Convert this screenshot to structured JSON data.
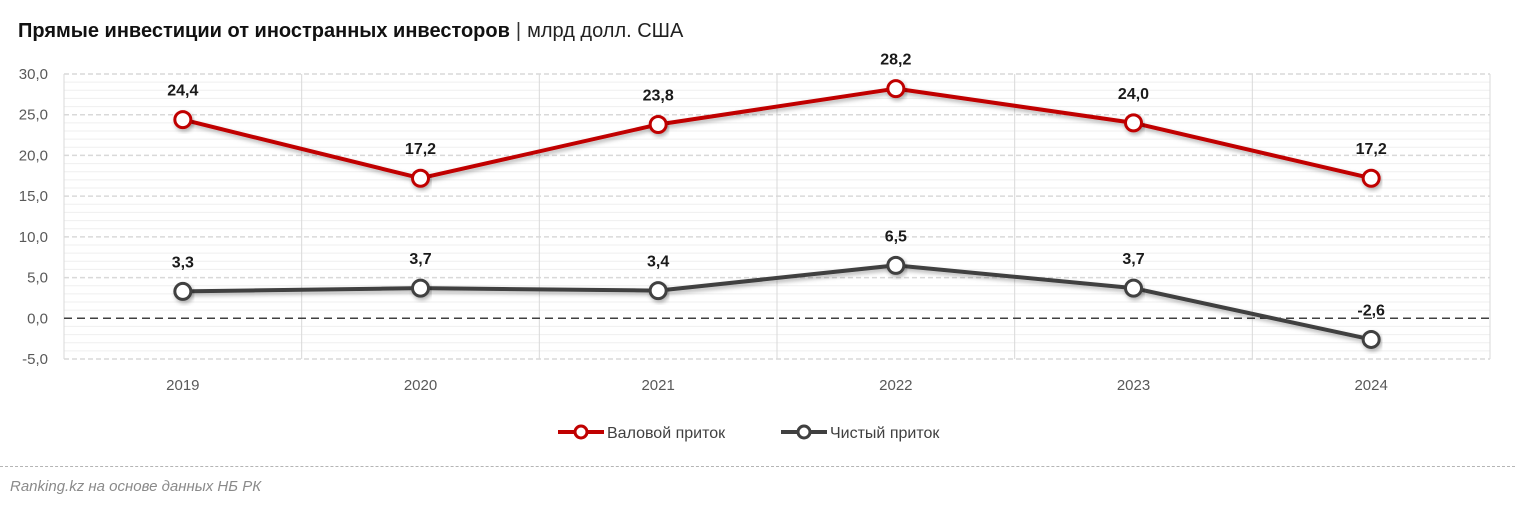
{
  "title": {
    "main": "Прямые инвестиции от иностранных инвесторов",
    "separator": "|",
    "unit": "млрд долл. США"
  },
  "source": "Ranking.kz на основе данных НБ РК",
  "colors": {
    "gross": "#c00000",
    "net": "#404040",
    "grid": "#d9d9d9",
    "zero_line": "#404040"
  },
  "chart_data": {
    "type": "line",
    "categories": [
      "2019",
      "2020",
      "2021",
      "2022",
      "2023",
      "2024"
    ],
    "series": [
      {
        "name": "Валовой приток",
        "values": [
          24.4,
          17.2,
          23.8,
          28.2,
          24.0,
          17.2
        ],
        "labels": [
          "24,4",
          "17,2",
          "23,8",
          "28,2",
          "24,0",
          "17,2"
        ]
      },
      {
        "name": "Чистый приток",
        "values": [
          3.3,
          3.7,
          3.4,
          6.5,
          3.7,
          -2.6
        ],
        "labels": [
          "3,3",
          "3,7",
          "3,4",
          "6,5",
          "3,7",
          "-2,6"
        ]
      }
    ],
    "yticks": [
      30,
      25,
      20,
      15,
      10,
      5,
      0,
      -5
    ],
    "ytick_labels": [
      "30,0",
      "25,0",
      "20,0",
      "15,0",
      "10,0",
      "5,0",
      "0,0",
      "-5,0"
    ],
    "ylim": [
      -5,
      30
    ],
    "legend": "bottom",
    "grid": true
  }
}
